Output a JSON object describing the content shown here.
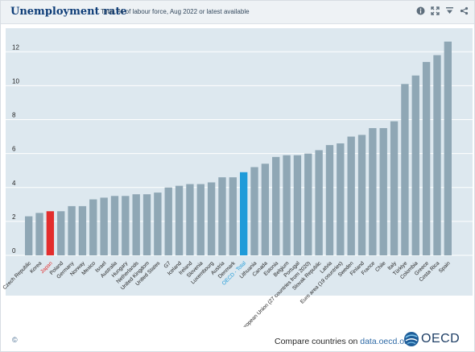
{
  "header": {
    "title": "Unemployment rate",
    "subtitle": "Total, % of labour force, Aug 2022 or latest available"
  },
  "toolbar": {
    "icons": [
      "info-icon",
      "expand-icon",
      "download-icon",
      "share-icon"
    ]
  },
  "colors": {
    "bar": "#8fa7b5",
    "highlight_red": "#e32d2d",
    "highlight_blue": "#1f9bd9",
    "plot_bg": "#dde8ef",
    "grid": "#ffffff",
    "title": "#0e3d78"
  },
  "chart_data": {
    "type": "bar",
    "title": "Unemployment rate",
    "subtitle": "Total, % of labour force, Aug 2022 or latest available",
    "xlabel": "",
    "ylabel": "",
    "ylim": [
      0,
      13.2
    ],
    "yticks": [
      0,
      2,
      4,
      6,
      8,
      10,
      12
    ],
    "grid": true,
    "categories": [
      "Czech Republic",
      "Korea",
      "Japan",
      "Poland",
      "Germany",
      "Norway",
      "Mexico",
      "Israel",
      "Australia",
      "Hungary",
      "Netherlands",
      "United Kingdom",
      "United States",
      "G7",
      "Iceland",
      "Ireland",
      "Slovenia",
      "Luxembourg",
      "Austria",
      "Denmark",
      "OECD - Total",
      "Lithuania",
      "Canada",
      "Estonia",
      "Belgium",
      "Portugal",
      "European Union (27 countries from 2020)",
      "Slovak Republic",
      "Latvia",
      "Euro area (19 countries)",
      "Sweden",
      "Finland",
      "France",
      "Chile",
      "Italy",
      "Türkiye",
      "Colombia",
      "Greece",
      "Costa Rica",
      "Spain"
    ],
    "values": [
      2.3,
      2.5,
      2.6,
      2.6,
      2.9,
      2.9,
      3.3,
      3.4,
      3.5,
      3.5,
      3.6,
      3.6,
      3.7,
      4.0,
      4.1,
      4.2,
      4.2,
      4.3,
      4.6,
      4.6,
      4.9,
      5.2,
      5.4,
      5.8,
      5.9,
      5.9,
      6.0,
      6.2,
      6.5,
      6.6,
      7.0,
      7.1,
      7.5,
      7.5,
      7.9,
      10.1,
      10.6,
      11.4,
      11.8,
      12.6
    ],
    "highlight": {
      "Japan": "red",
      "OECD - Total": "blue"
    }
  },
  "footer": {
    "copyright": "©",
    "compare_prefix": "Compare countries on",
    "compare_link": "data.oecd.org",
    "logo_text": "OECD"
  }
}
